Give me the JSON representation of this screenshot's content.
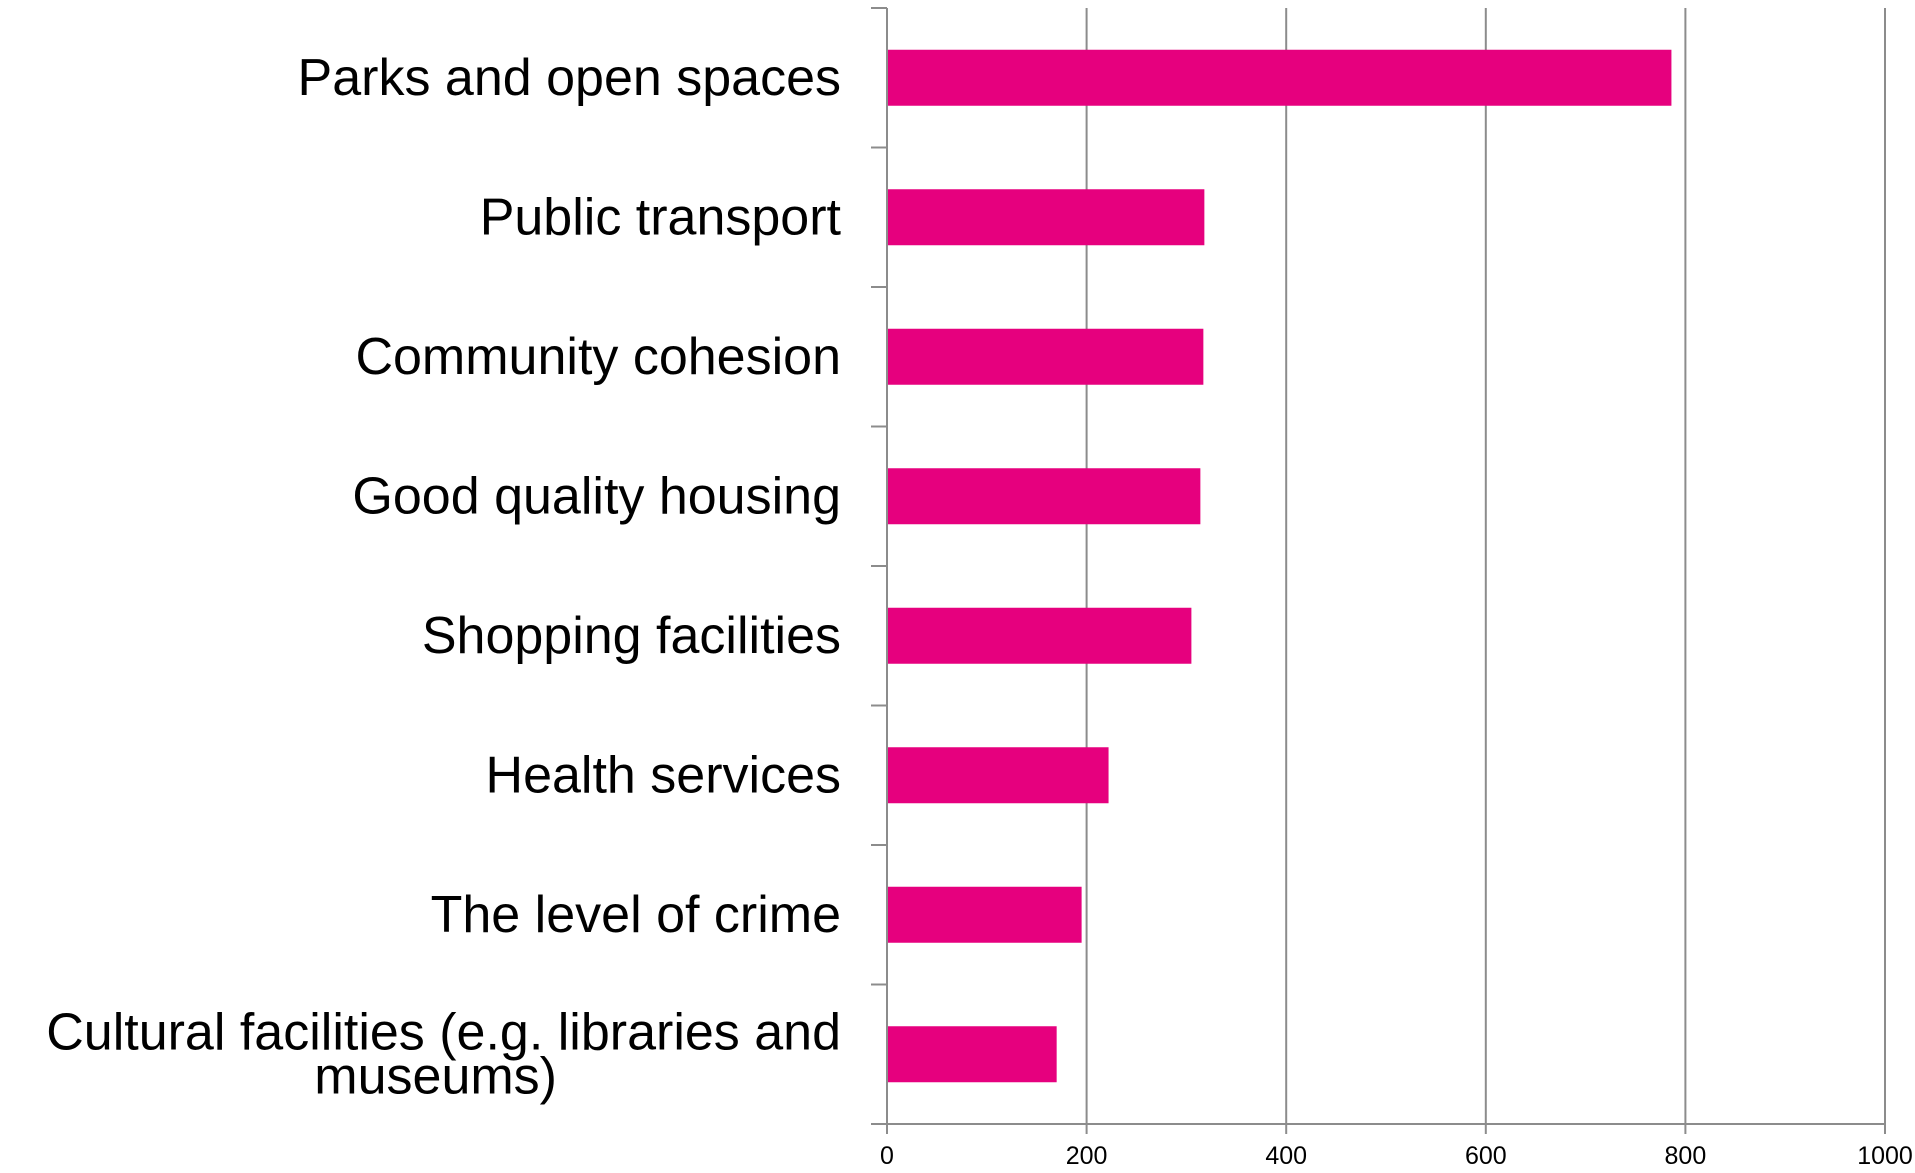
{
  "chart_data": {
    "type": "bar",
    "orientation": "horizontal",
    "categories": [
      [
        "Parks and open spaces"
      ],
      [
        "Public transport"
      ],
      [
        "Community cohesion"
      ],
      [
        "Good quality housing"
      ],
      [
        "Shopping facilities"
      ],
      [
        "Health services"
      ],
      [
        "The level of crime"
      ],
      [
        "Cultural facilities (e.g. libraries and",
        "museums)"
      ]
    ],
    "values": [
      786,
      318,
      317,
      314,
      305,
      222,
      195,
      170
    ],
    "xlim": [
      0,
      1000
    ],
    "xticks": [
      "0",
      "200",
      "400",
      "600",
      "800",
      "1000"
    ],
    "bar_color": "#e6007e",
    "grid": "vertical",
    "legend": "none",
    "title": "",
    "xlabel": "",
    "ylabel": ""
  }
}
